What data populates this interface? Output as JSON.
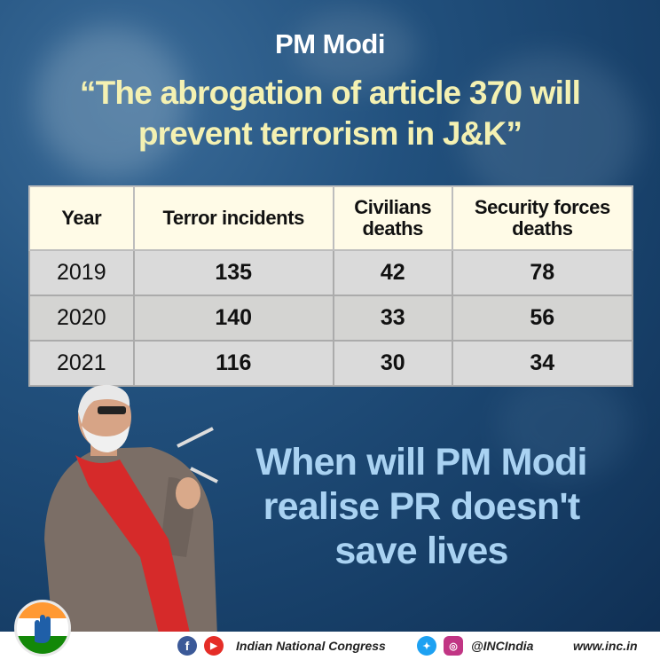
{
  "header": {
    "speaker": "PM Modi",
    "quote_line1": "“The abrogation of article 370 will",
    "quote_line2": "prevent terrorism in J&K”"
  },
  "table": {
    "headers": [
      "Year",
      "Terror incidents",
      "Civilians deaths",
      "Security forces deaths"
    ],
    "rows": [
      {
        "year": "2019",
        "terror": "135",
        "civilians": "42",
        "security": "78"
      },
      {
        "year": "2020",
        "terror": "140",
        "civilians": "33",
        "security": "56"
      },
      {
        "year": "2021",
        "terror": "116",
        "civilians": "30",
        "security": "34"
      }
    ]
  },
  "cta": {
    "line1": "When will PM Modi",
    "line2": "realise PR doesn't",
    "line3": "save lives"
  },
  "footer": {
    "org": "Indian National Congress",
    "handle": "@INCIndia",
    "website": "www.inc.in",
    "icons": [
      "facebook-icon",
      "youtube-icon",
      "twitter-icon",
      "instagram-icon"
    ]
  },
  "colors": {
    "background": "#1c4a75",
    "quote": "#f4f1b2",
    "cta": "#a9d2f2",
    "table_header": "#fffbe7",
    "table_cell": "#dadada",
    "facebook": "#3b5998",
    "youtube": "#e52d27",
    "twitter": "#1da1f2",
    "instagram": "#c13584"
  }
}
